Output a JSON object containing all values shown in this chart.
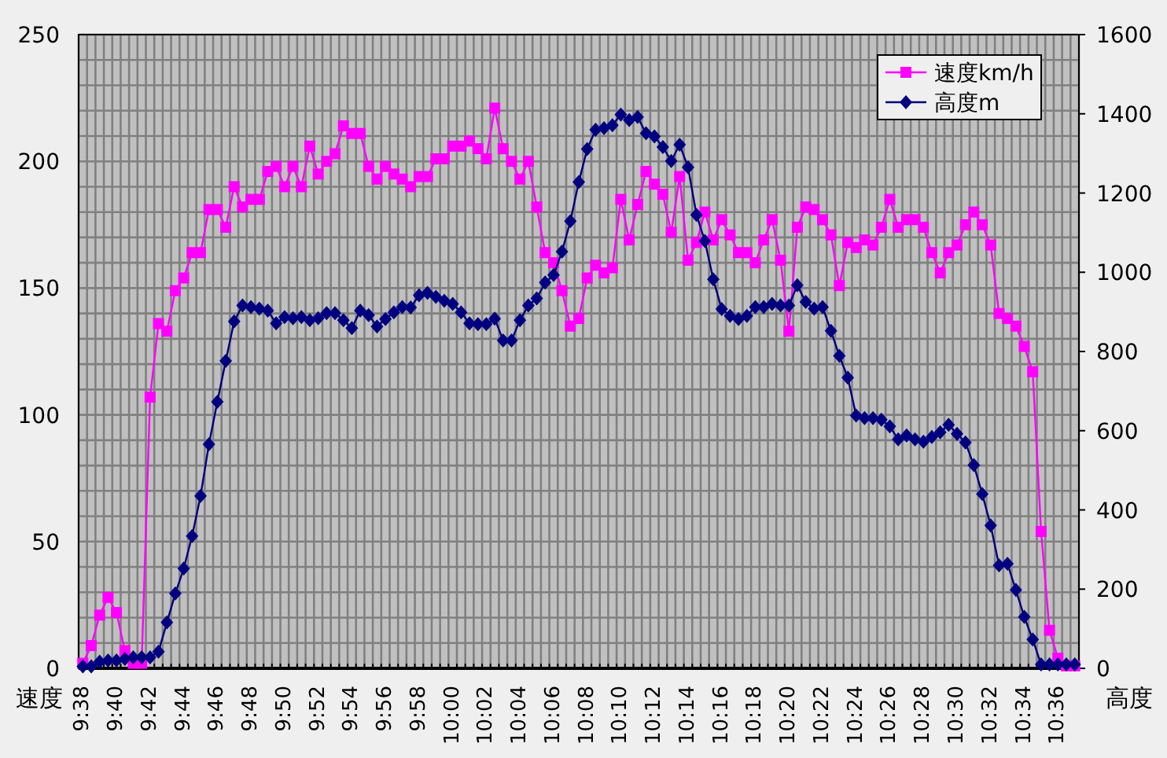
{
  "chart_data": {
    "type": "line",
    "ylabel": "速度",
    "y2label": "高度",
    "categories": [
      "9:38",
      null,
      null,
      null,
      "9:40",
      null,
      null,
      null,
      "9:42",
      null,
      null,
      null,
      "9:44",
      null,
      null,
      null,
      "9:46",
      null,
      null,
      null,
      "9:48",
      null,
      null,
      null,
      "9:50",
      null,
      null,
      null,
      "9:52",
      null,
      null,
      null,
      "9:54",
      null,
      null,
      null,
      "9:56",
      null,
      null,
      null,
      "9:58",
      null,
      null,
      null,
      "10:00",
      null,
      null,
      null,
      "10:02",
      null,
      null,
      null,
      "10:04",
      null,
      null,
      null,
      "10:06",
      null,
      null,
      null,
      "10:08",
      null,
      null,
      null,
      "10:10",
      null,
      null,
      null,
      "10:12",
      null,
      null,
      null,
      "10:14",
      null,
      null,
      null,
      "10:16",
      null,
      null,
      null,
      "10:18",
      null,
      null,
      null,
      "10:20",
      null,
      null,
      null,
      "10:22",
      null,
      null,
      null,
      "10:24",
      null,
      null,
      null,
      "10:26",
      null,
      null,
      null,
      "10:28",
      null,
      null,
      null,
      "10:30",
      null,
      null,
      null,
      "10:32",
      null,
      null,
      null,
      "10:34",
      null,
      null,
      null,
      "10:36",
      null,
      null
    ],
    "series": [
      {
        "name": "速度km/h",
        "color": "#ff00ff",
        "marker": "square",
        "values": [
          2,
          9,
          21,
          28,
          22,
          7,
          2,
          2,
          107,
          136,
          133,
          149,
          154,
          164,
          164,
          181,
          181,
          174,
          190,
          182,
          185,
          185,
          196,
          198,
          190,
          198,
          190,
          206,
          195,
          200,
          203,
          214,
          211,
          211,
          198,
          193,
          198,
          195,
          193,
          190,
          194,
          194,
          201,
          201,
          206,
          206,
          208,
          205,
          201,
          221,
          205,
          200,
          193,
          200,
          182,
          164,
          160,
          149,
          135,
          138,
          154,
          159,
          156,
          158,
          185,
          169,
          183,
          196,
          191,
          187,
          172,
          194,
          161,
          168,
          180,
          169,
          177,
          171,
          164,
          164,
          160,
          169,
          177,
          161,
          133,
          174,
          182,
          181,
          177,
          171,
          151,
          168,
          166,
          169,
          167,
          174,
          185,
          174,
          177,
          177,
          174,
          164,
          156,
          164,
          167,
          175,
          180,
          175,
          167,
          140,
          138,
          135,
          127,
          117,
          54,
          15,
          4,
          1,
          1
        ]
      },
      {
        "name": "高度m",
        "color": "#000080",
        "marker": "diamond",
        "axis": "y2",
        "values": [
          5,
          5,
          17,
          20,
          20,
          24,
          28,
          28,
          28,
          42,
          116,
          189,
          252,
          334,
          435,
          566,
          673,
          776,
          876,
          916,
          912,
          908,
          903,
          871,
          887,
          884,
          887,
          879,
          884,
          897,
          897,
          879,
          859,
          903,
          892,
          863,
          882,
          899,
          912,
          911,
          942,
          948,
          938,
          928,
          920,
          899,
          871,
          869,
          869,
          883,
          828,
          828,
          879,
          916,
          934,
          974,
          993,
          1052,
          1129,
          1228,
          1311,
          1360,
          1364,
          1371,
          1398,
          1384,
          1392,
          1351,
          1343,
          1316,
          1281,
          1322,
          1265,
          1145,
          1079,
          982,
          907,
          890,
          882,
          890,
          912,
          912,
          920,
          916,
          916,
          967,
          925,
          908,
          912,
          852,
          789,
          734,
          638,
          632,
          632,
          628,
          611,
          578,
          588,
          578,
          572,
          584,
          596,
          615,
          592,
          570,
          513,
          440,
          361,
          260,
          264,
          198,
          130,
          73,
          10,
          10,
          10,
          10,
          10
        ]
      }
    ],
    "ylim": [
      0,
      250
    ],
    "yticks": [
      0,
      {
        "value": 10,
        "label": null
      },
      {
        "value": 20,
        "label": null
      },
      {
        "value": 30,
        "label": null
      },
      {
        "value": 40,
        "label": null
      },
      50,
      {
        "value": 60,
        "label": null
      },
      {
        "value": 70,
        "label": null
      },
      {
        "value": 80,
        "label": null
      },
      {
        "value": 90,
        "label": null
      },
      100,
      {
        "value": 110,
        "label": null
      },
      {
        "value": 120,
        "label": null
      },
      {
        "value": 130,
        "label": null
      },
      {
        "value": 140,
        "label": null
      },
      150,
      {
        "value": 160,
        "label": null
      },
      {
        "value": 170,
        "label": null
      },
      {
        "value": 180,
        "label": null
      },
      {
        "value": 190,
        "label": null
      },
      200,
      {
        "value": 210,
        "label": null
      },
      {
        "value": 220,
        "label": null
      },
      {
        "value": 230,
        "label": null
      },
      {
        "value": 240,
        "label": null
      },
      250
    ],
    "y2lim": [
      0,
      1600
    ],
    "y2ticks": [
      0,
      200,
      400,
      600,
      800,
      1000,
      1200,
      1400,
      1600
    ],
    "grid": true,
    "legend": "top right",
    "line_style": "solid"
  }
}
